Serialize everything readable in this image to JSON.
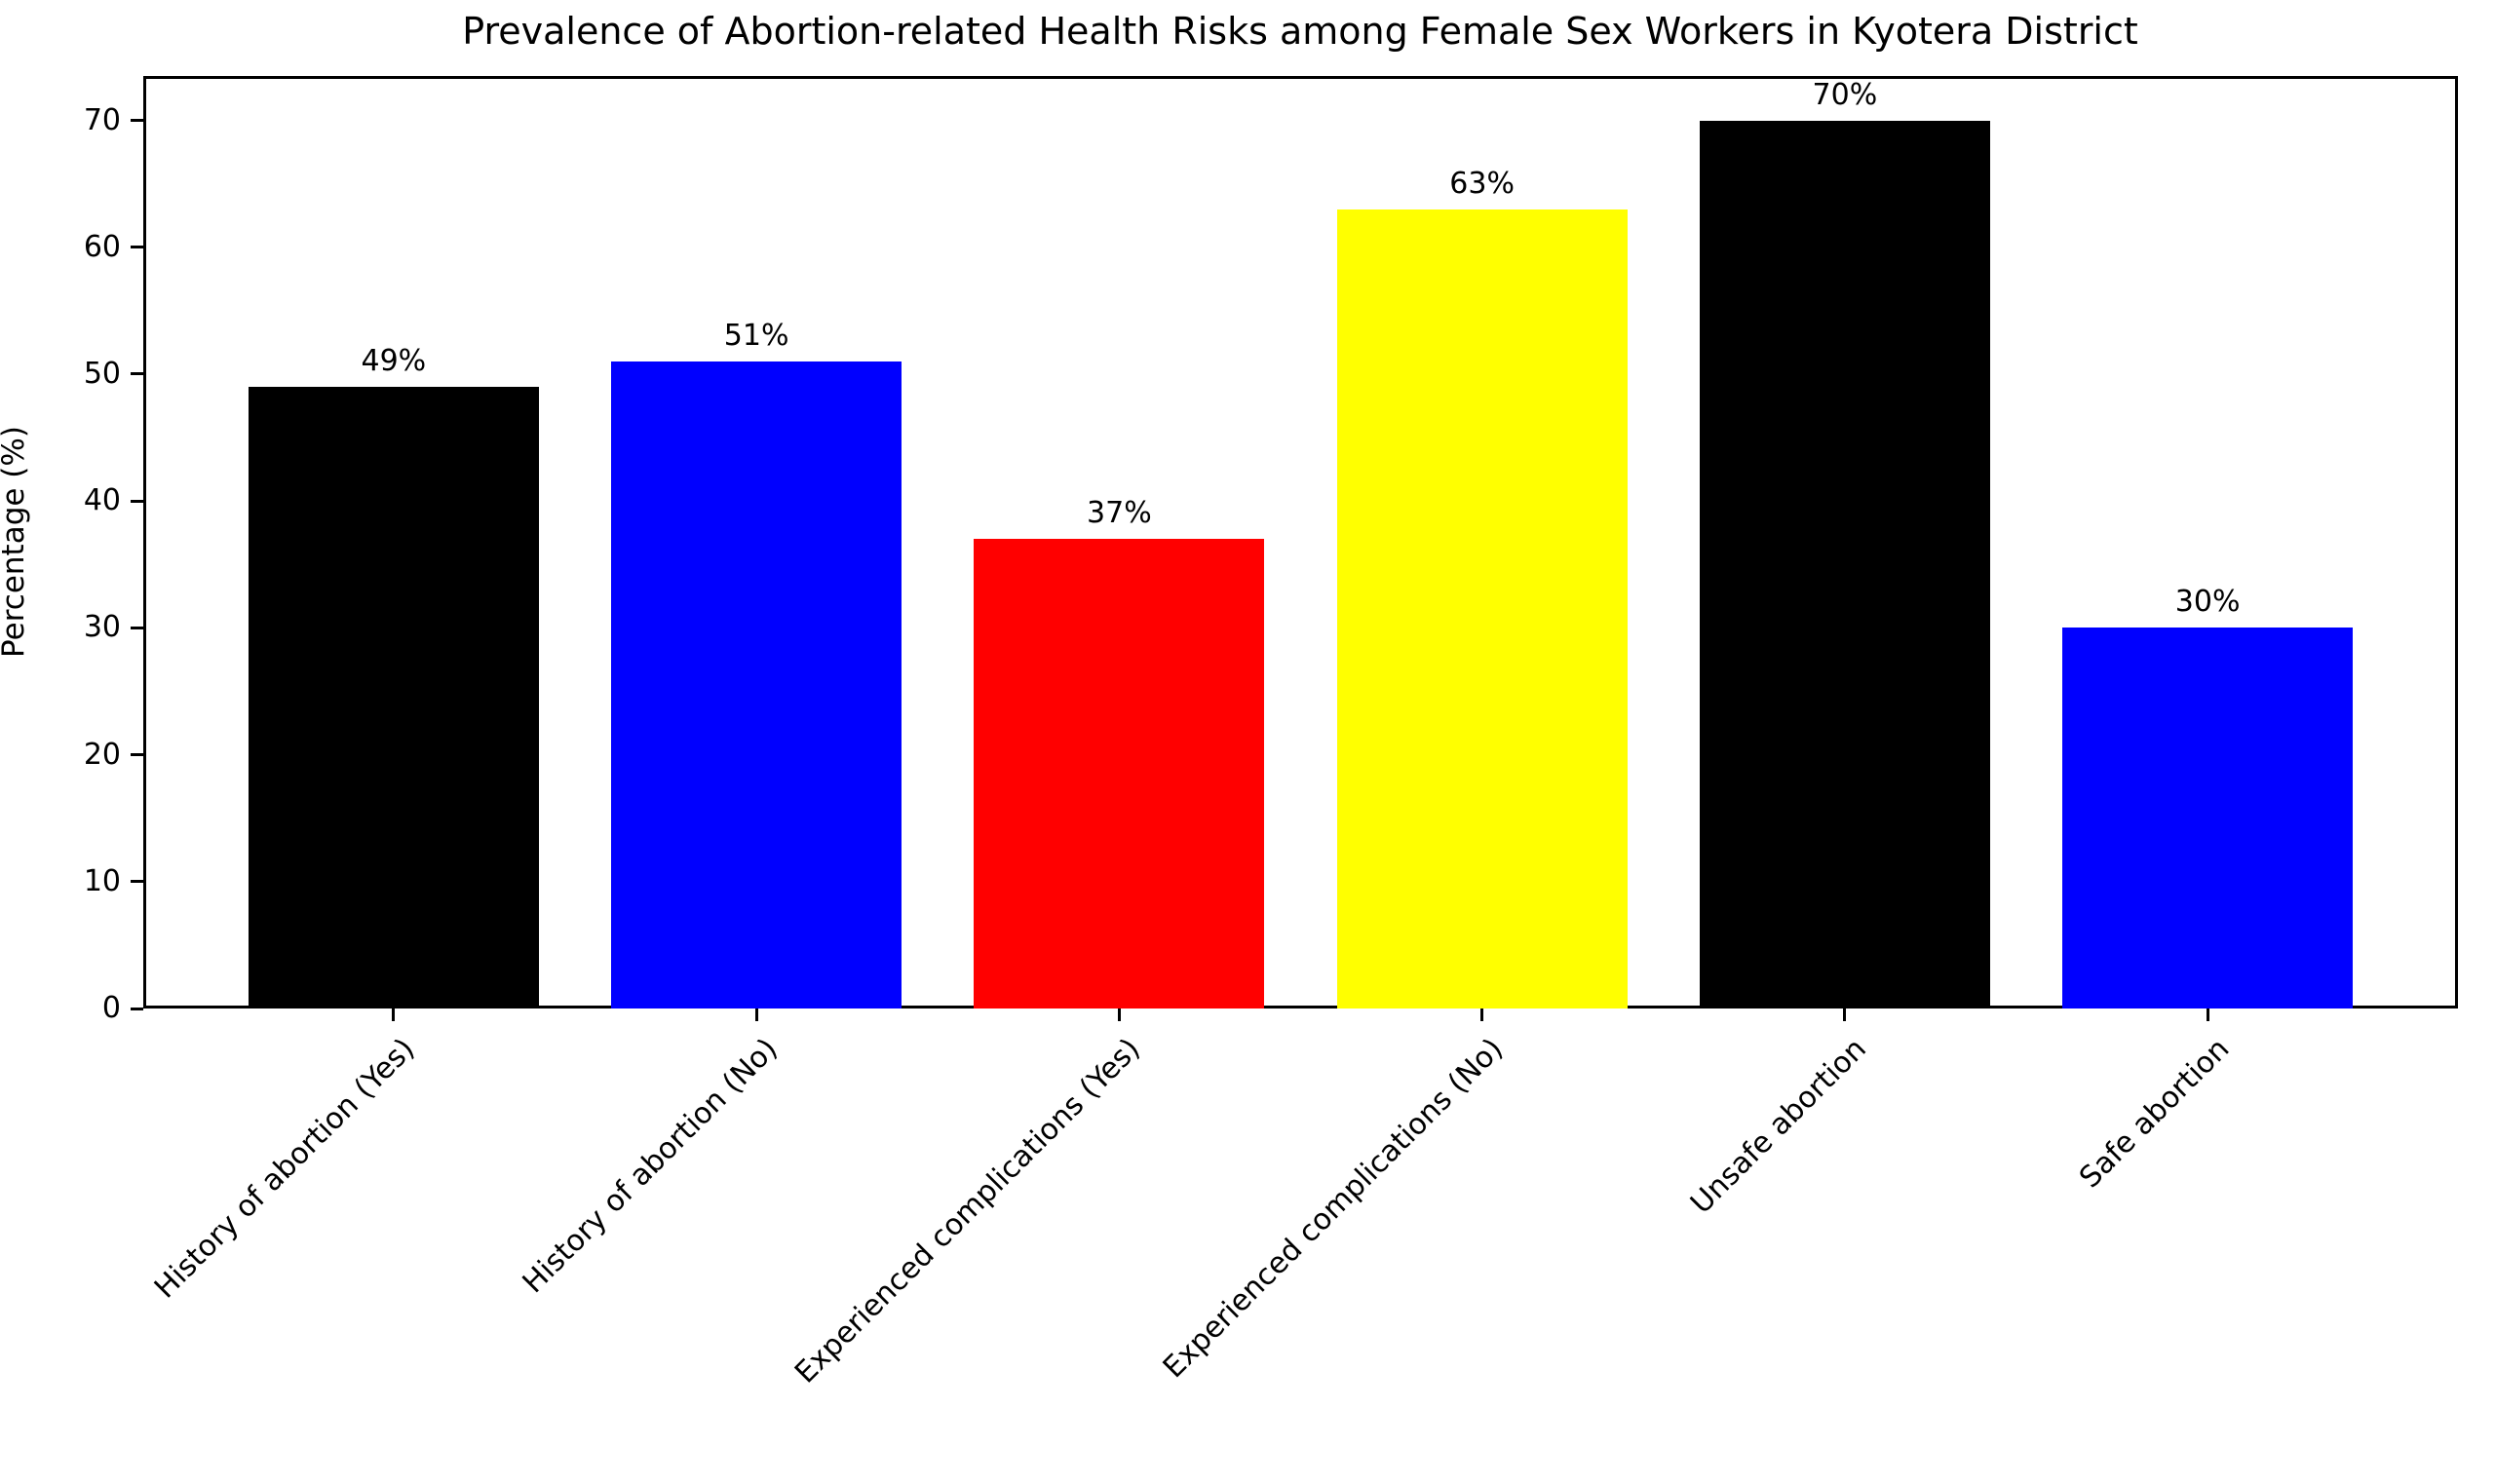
{
  "chart_data": {
    "type": "bar",
    "title": "Prevalence of Abortion-related Health Risks among Female Sex Workers in Kyotera District",
    "xlabel": "",
    "ylabel": "Percentage (%)",
    "categories": [
      "History of abortion (Yes)",
      "History of abortion (No)",
      "Experienced complications (Yes)",
      "Experienced complications (No)",
      "Unsafe abortion",
      "Safe abortion"
    ],
    "values": [
      49,
      51,
      37,
      63,
      70,
      30
    ],
    "value_labels": [
      "49%",
      "51%",
      "37%",
      "63%",
      "70%",
      "30%"
    ],
    "bar_colors": [
      "#000000",
      "#0000ff",
      "#ff0000",
      "#ffff00",
      "#000000",
      "#0000ff"
    ],
    "yticks": [
      0,
      10,
      20,
      30,
      40,
      50,
      60,
      70
    ],
    "ylim": [
      0,
      73.5
    ],
    "grid": false,
    "legend": "none",
    "background_color": "#ffffff",
    "axis_color": "#000000"
  }
}
